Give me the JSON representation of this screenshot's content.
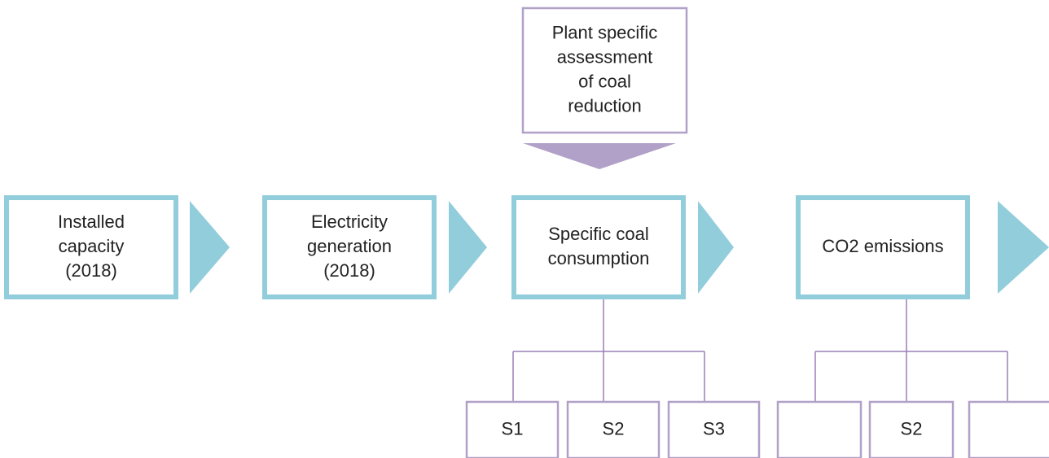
{
  "nodes": [
    {
      "lines": [
        "Installed",
        "capacity",
        "(2018)"
      ]
    },
    {
      "lines": [
        "Electricity",
        "generation",
        "(2018)"
      ]
    },
    {
      "lines": [
        "Specific coal",
        "consumption"
      ]
    },
    {
      "lines": [
        "CO2 emissions"
      ]
    },
    {
      "lines": [
        "Plant specific",
        "assessment",
        "of coal",
        "reduction"
      ]
    }
  ],
  "scenarios": [
    {
      "lines": [
        "S1"
      ]
    },
    {
      "lines": [
        "S2"
      ]
    },
    {
      "lines": [
        "S3"
      ]
    },
    {
      "lines": []
    },
    {
      "lines": [
        "S2"
      ]
    },
    {
      "lines": []
    }
  ]
}
